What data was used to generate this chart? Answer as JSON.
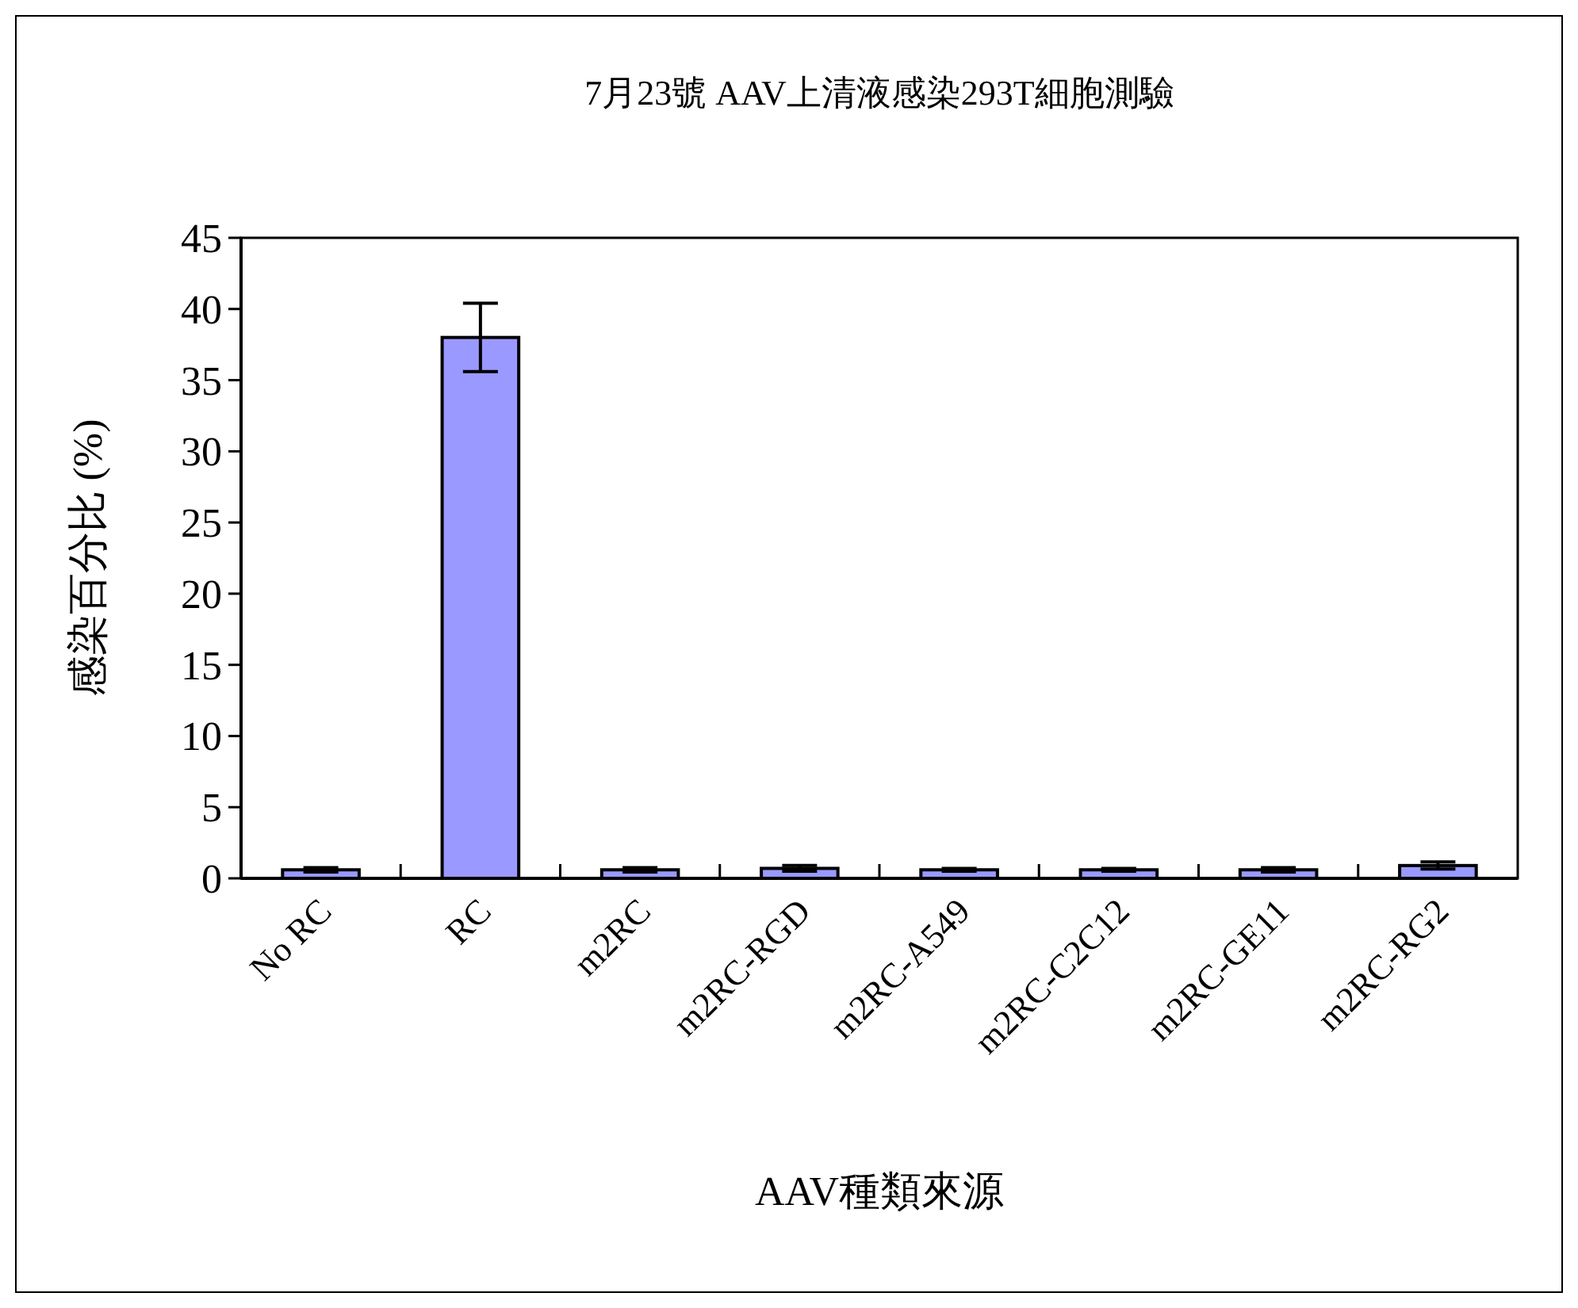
{
  "chart_data": {
    "type": "bar",
    "title": "7月23號 AAV上清液感染293T細胞測驗",
    "xlabel": "AAV種類來源",
    "ylabel": "感染百分比 (%)",
    "categories": [
      "No RC",
      "RC",
      "m2RC",
      "m2RC-RGD",
      "m2RC-A549",
      "m2RC-C2C12",
      "m2RC-GE11",
      "m2RC-RG2"
    ],
    "values": [
      0.6,
      38,
      0.6,
      0.7,
      0.6,
      0.6,
      0.6,
      0.9
    ],
    "errors": [
      0.15,
      2.4,
      0.15,
      0.2,
      0.1,
      0.1,
      0.15,
      0.25
    ],
    "color": "#9999ff",
    "ylim": [
      0,
      45
    ],
    "yticks": [
      0,
      5,
      10,
      15,
      20,
      25,
      30,
      35,
      40,
      45
    ],
    "grid": false
  }
}
